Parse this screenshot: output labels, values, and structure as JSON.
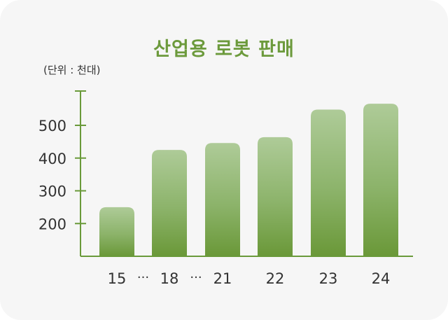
{
  "chart_data": {
    "type": "bar",
    "title": "산업용 로봇 판매",
    "unit_note": "(단위 : 천대)",
    "categories": [
      "15",
      "18",
      "21",
      "22",
      "23",
      "24"
    ],
    "values": [
      250,
      425,
      446,
      464,
      548,
      566
    ],
    "ellipsis_after": [
      "15",
      "18"
    ],
    "ellipsis_text": "···",
    "yticks": [
      200,
      300,
      400,
      500
    ],
    "ylim": [
      100,
      600
    ],
    "grid": false,
    "colors": {
      "bar_top": "#a9c791",
      "bar_bottom": "#6d9a3a",
      "axis": "#6a9a3a",
      "title": "#6c9a3c"
    }
  }
}
